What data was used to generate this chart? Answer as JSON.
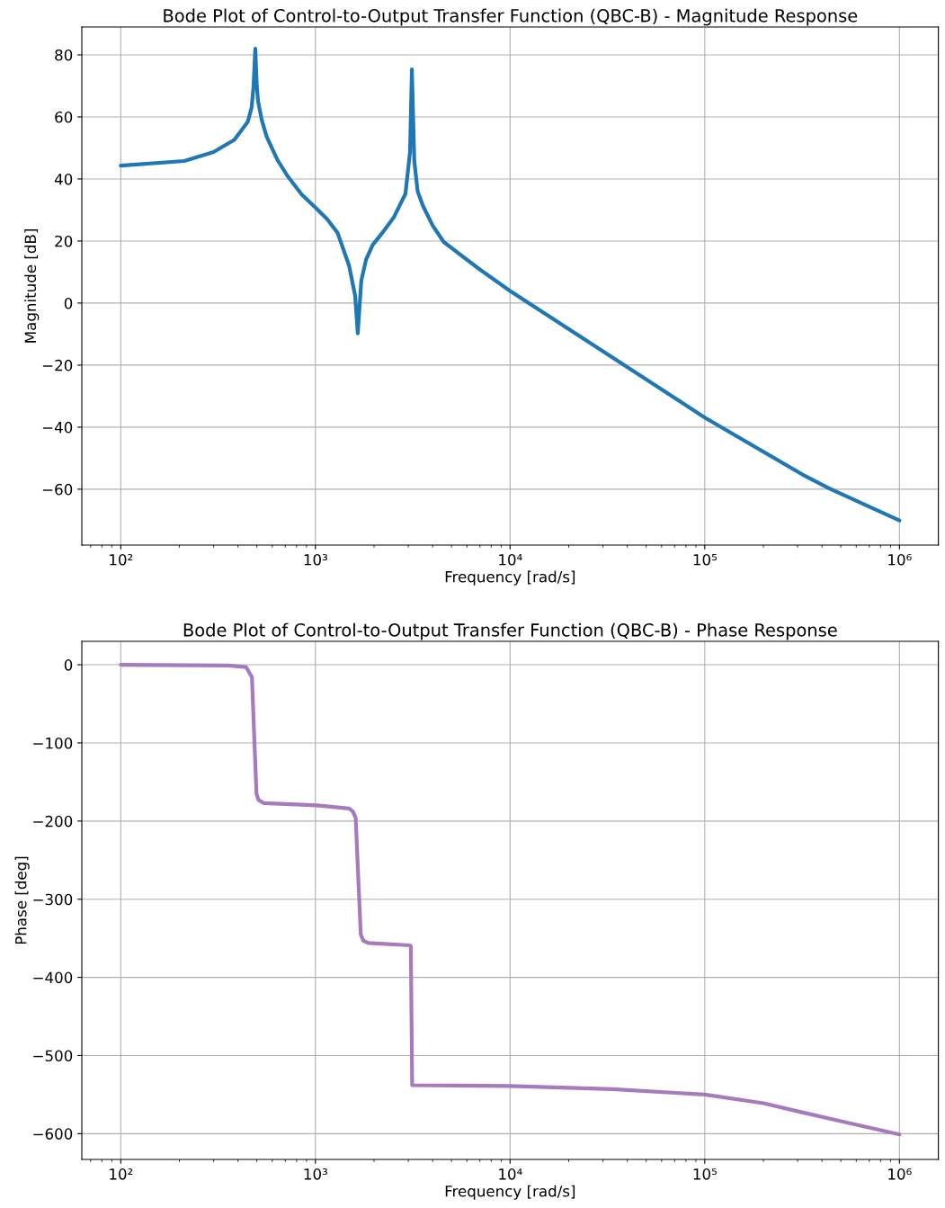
{
  "chart_data": [
    {
      "type": "line",
      "title": "Bode Plot of Control-to-Output Transfer Function (QBC-B) - Magnitude Response",
      "xlabel": "Frequency [rad/s]",
      "ylabel": "Magnitude [dB]",
      "log": "x",
      "grid": true,
      "xlim": [
        63.1,
        1585000
      ],
      "ylim": [
        -78,
        89
      ],
      "xticks": [
        {
          "value": 100,
          "label": "10²"
        },
        {
          "value": 1000,
          "label": "10³"
        },
        {
          "value": 10000,
          "label": "10⁴"
        },
        {
          "value": 100000,
          "label": "10⁵"
        },
        {
          "value": 1000000,
          "label": "10⁶"
        }
      ],
      "yticks": [
        {
          "value": -60,
          "label": "−60"
        },
        {
          "value": -40,
          "label": "−40"
        },
        {
          "value": -20,
          "label": "−20"
        },
        0,
        20,
        40,
        60,
        80
      ],
      "series": [
        {
          "color": "#1f77b4",
          "x": [
            100,
            212,
            300,
            383,
            449,
            470,
            481,
            491,
            500,
            507,
            530,
            562,
            640,
            718,
            850,
            1000,
            1150,
            1300,
            1490,
            1600,
            1650,
            1720,
            1820,
            1970,
            2230,
            2520,
            2900,
            3060,
            3130,
            3220,
            3350,
            3570,
            4000,
            4560,
            6930,
            10000,
            31600,
            100000,
            316000,
            437000,
            1000000
          ],
          "values": [
            44.3,
            45.8,
            48.7,
            52.6,
            58.4,
            63,
            69.9,
            82.0,
            70,
            65.2,
            59,
            53.6,
            46,
            41.0,
            35,
            30.8,
            27,
            22.6,
            12.0,
            2.3,
            -9.8,
            7.2,
            14,
            18.8,
            23,
            27.5,
            35.2,
            48.7,
            75.3,
            45.8,
            36,
            31.3,
            25,
            19.7,
            11.0,
            3.9,
            -16.5,
            -36.9,
            -55.2,
            -59.8,
            -70.1
          ]
        }
      ]
    },
    {
      "type": "line",
      "title": "Bode Plot of Control-to-Output Transfer Function (QBC-B) - Phase Response",
      "xlabel": "Frequency [rad/s]",
      "ylabel": "Phase [deg]",
      "log": "x",
      "grid": true,
      "xlim": [
        63.1,
        1585000
      ],
      "ylim": [
        -633,
        30
      ],
      "xticks": [
        {
          "value": 100,
          "label": "10²"
        },
        {
          "value": 1000,
          "label": "10³"
        },
        {
          "value": 10000,
          "label": "10⁴"
        },
        {
          "value": 100000,
          "label": "10⁵"
        },
        {
          "value": 1000000,
          "label": "10⁶"
        }
      ],
      "yticks": [
        {
          "value": -600,
          "label": "−600"
        },
        {
          "value": -500,
          "label": "−500"
        },
        {
          "value": -400,
          "label": "−400"
        },
        {
          "value": -300,
          "label": "−300"
        },
        {
          "value": -200,
          "label": "−200"
        },
        {
          "value": -100,
          "label": "−100"
        },
        0
      ],
      "series": [
        {
          "color": "#a57bbd",
          "x": [
            100,
            357,
            441,
            472,
            485,
            498,
            510,
            543,
            1020,
            1490,
            1560,
            1610,
            1660,
            1710,
            1760,
            1870,
            3060,
            3090,
            3140,
            10000,
            33600,
            100000,
            200000,
            295000,
            500000,
            1000000
          ],
          "values": [
            0,
            -1,
            -3,
            -16,
            -93,
            -165,
            -173,
            -177,
            -180,
            -184,
            -188,
            -196,
            -273,
            -345,
            -353,
            -356,
            -359,
            -360,
            -538,
            -539,
            -543,
            -550,
            -561,
            -571,
            -584,
            -601
          ]
        }
      ]
    }
  ]
}
